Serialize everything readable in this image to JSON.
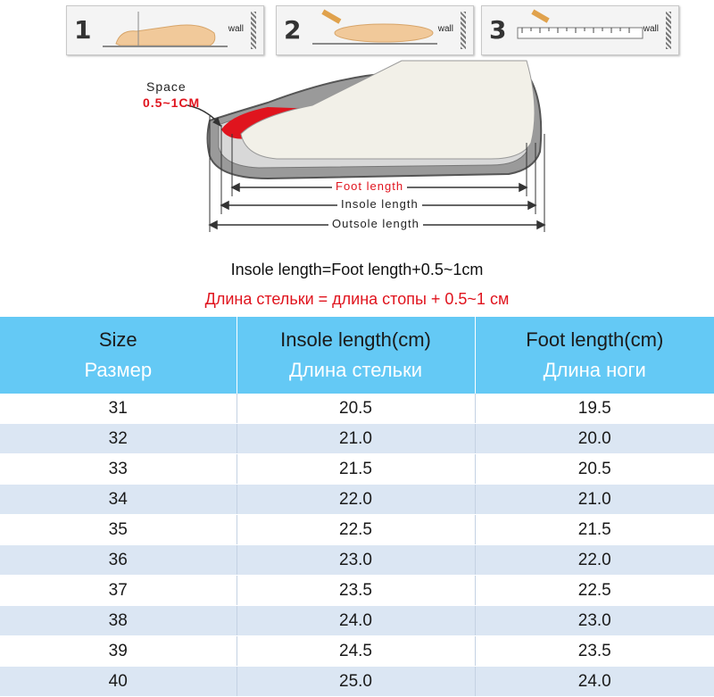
{
  "steps": [
    {
      "number": "1",
      "wall": "wall"
    },
    {
      "number": "2",
      "wall": "wall"
    },
    {
      "number": "3",
      "wall": "wall"
    }
  ],
  "diagram": {
    "space_label": "Space",
    "space_value": "0.5~1CM",
    "foot_length": "Foot length",
    "insole_length": "Insole length",
    "outsole_length": "Outsole length"
  },
  "formula": {
    "en": "Insole length=Foot length+0.5~1cm",
    "ru": "Длина стельки = длина стопы + 0.5~1 см"
  },
  "table": {
    "headers": [
      {
        "en": "Size",
        "ru": "Размер"
      },
      {
        "en": "Insole length(cm)",
        "ru": "Длина стельки"
      },
      {
        "en": "Foot length(cm)",
        "ru": "Длина ноги"
      }
    ],
    "rows": [
      [
        "31",
        "20.5",
        "19.5"
      ],
      [
        "32",
        "21.0",
        "20.0"
      ],
      [
        "33",
        "21.5",
        "20.5"
      ],
      [
        "34",
        "22.0",
        "21.0"
      ],
      [
        "35",
        "22.5",
        "21.5"
      ],
      [
        "36",
        "23.0",
        "22.0"
      ],
      [
        "37",
        "23.5",
        "22.5"
      ],
      [
        "38",
        "24.0",
        "23.0"
      ],
      [
        "39",
        "24.5",
        "23.5"
      ],
      [
        "40",
        "25.0",
        "24.0"
      ]
    ]
  },
  "colors": {
    "header_bg": "#64c9f5",
    "row_alt_bg": "#dbe6f3",
    "accent_red": "#e0141e"
  }
}
